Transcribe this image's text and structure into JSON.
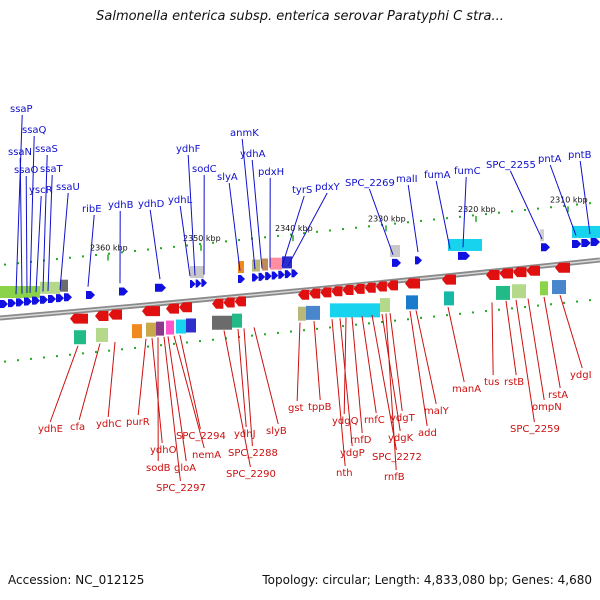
{
  "title": "Salmonella enterica subsp. enterica serovar Paratyphi C stra...",
  "footer": {
    "accession": "Accession: NC_012125",
    "summary": "Topology: circular; Length: 4,833,080 bp; Genes: 4,680"
  },
  "colors": {
    "forward_label": "#1010cc",
    "reverse_label": "#cc1010",
    "forward_arrow": "#1010e0",
    "reverse_arrow": "#e01010",
    "backbone": "#8a8a8a",
    "tick": "#22aa22"
  },
  "kbp_labels": [
    "2360 kbp",
    "2350 kbp",
    "2340 kbp",
    "2330 kbp",
    "2320 kbp",
    "2310 kbp"
  ],
  "forward_genes": [
    "ssaP",
    "ssaQ",
    "ssaN",
    "ssaS",
    "ssaO",
    "ssaT",
    "yscR",
    "ssaU",
    "ribE",
    "ydhB",
    "ydhD",
    "ydhF",
    "ydhL",
    "sodC",
    "anmK",
    "slyA",
    "ydhA",
    "pdxH",
    "tyrS",
    "pdxY",
    "SPC_2269",
    "malI",
    "fumA",
    "fumC",
    "SPC_2255",
    "pntA",
    "pntB"
  ],
  "reverse_genes": [
    "ydhE",
    "cfa",
    "ydhC",
    "purR",
    "ydhO",
    "sodB",
    "SPC_2297",
    "gloA",
    "nemA",
    "SPC_2294",
    "SPC_2290",
    "ydhJ",
    "SPC_2288",
    "slyB",
    "gst",
    "tppB",
    "nth",
    "ydgP",
    "ydgQ",
    "rnfD",
    "rnfC",
    "SPC_2272",
    "ydgK",
    "ydgT",
    "rnfB",
    "add",
    "malY",
    "manA",
    "tus",
    "rstB",
    "SPC_2259",
    "ompN",
    "rstA",
    "ydgI"
  ]
}
